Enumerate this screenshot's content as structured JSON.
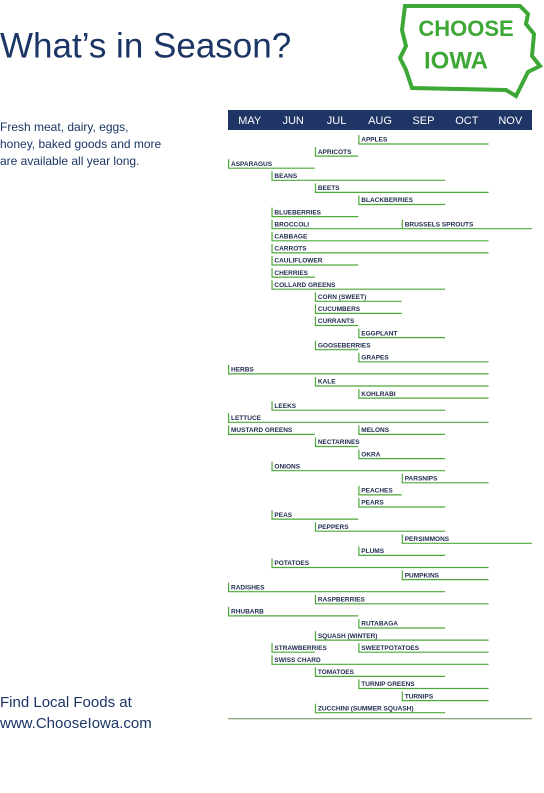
{
  "chart_data": {
    "type": "gantt",
    "title": "What’s in Season?",
    "subtitle_lines": [
      "Fresh meat, dairy, eggs,",
      "honey, baked goods and more",
      "are available all year long."
    ],
    "footer_lines": [
      "Find Local Foods at",
      "www.ChooseIowa.com"
    ],
    "logo": [
      "CHOOSE",
      "IOWA"
    ],
    "categories": [
      "MAY",
      "JUN",
      "JUL",
      "AUG",
      "SEP",
      "OCT",
      "NOV"
    ],
    "xlim": [
      0,
      7
    ],
    "color": "#4ea93b",
    "rows": [
      [
        {
          "name": "APPLES",
          "start": 3,
          "end": 6
        }
      ],
      [
        {
          "name": "APRICOTS",
          "start": 2,
          "end": 3
        }
      ],
      [
        {
          "name": "ASPARAGUS",
          "start": 0,
          "end": 2
        }
      ],
      [
        {
          "name": "BEANS",
          "start": 1,
          "end": 5
        }
      ],
      [
        {
          "name": "BEETS",
          "start": 2,
          "end": 6
        }
      ],
      [
        {
          "name": "BLACKBERRIES",
          "start": 3,
          "end": 5
        }
      ],
      [
        {
          "name": "BLUEBERRIES",
          "start": 1,
          "end": 3
        }
      ],
      [
        {
          "name": "BROCCOLI",
          "start": 1,
          "end": 4
        },
        {
          "name": "BRUSSELS SPROUTS",
          "start": 4,
          "end": 7
        }
      ],
      [
        {
          "name": "CABBAGE",
          "start": 1,
          "end": 6
        }
      ],
      [
        {
          "name": "CARROTS",
          "start": 1,
          "end": 6
        }
      ],
      [
        {
          "name": "CAULIFLOWER",
          "start": 1,
          "end": 3
        }
      ],
      [
        {
          "name": "CHERRIES",
          "start": 1,
          "end": 2
        }
      ],
      [
        {
          "name": "COLLARD GREENS",
          "start": 1,
          "end": 5
        }
      ],
      [
        {
          "name": "CORN (SWEET)",
          "start": 2,
          "end": 4
        }
      ],
      [
        {
          "name": "CUCUMBERS",
          "start": 2,
          "end": 4
        }
      ],
      [
        {
          "name": "CURRANTS",
          "start": 2,
          "end": 3
        }
      ],
      [
        {
          "name": "EGGPLANT",
          "start": 3,
          "end": 5
        }
      ],
      [
        {
          "name": "GOOSEBERRIES",
          "start": 2,
          "end": 3
        }
      ],
      [
        {
          "name": "GRAPES",
          "start": 3,
          "end": 6
        }
      ],
      [
        {
          "name": "HERBS",
          "start": 0,
          "end": 6
        }
      ],
      [
        {
          "name": "KALE",
          "start": 2,
          "end": 6
        }
      ],
      [
        {
          "name": "KOHLRABI",
          "start": 3,
          "end": 6
        }
      ],
      [
        {
          "name": "LEEKS",
          "start": 1,
          "end": 5
        }
      ],
      [
        {
          "name": "LETTUCE",
          "start": 0,
          "end": 6
        }
      ],
      [
        {
          "name": "MUSTARD GREENS",
          "start": 0,
          "end": 2
        },
        {
          "name": "MELONS",
          "start": 3,
          "end": 5
        }
      ],
      [
        {
          "name": "NECTARINES",
          "start": 2,
          "end": 3
        }
      ],
      [
        {
          "name": "OKRA",
          "start": 3,
          "end": 5
        }
      ],
      [
        {
          "name": "ONIONS",
          "start": 1,
          "end": 5
        }
      ],
      [
        {
          "name": "PARSNIPS",
          "start": 4,
          "end": 6
        }
      ],
      [
        {
          "name": "PEACHES",
          "start": 3,
          "end": 4
        }
      ],
      [
        {
          "name": "PEARS",
          "start": 3,
          "end": 5
        }
      ],
      [
        {
          "name": "PEAS",
          "start": 1,
          "end": 3
        }
      ],
      [
        {
          "name": "PEPPERS",
          "start": 2,
          "end": 5
        }
      ],
      [
        {
          "name": "PERSIMMONS",
          "start": 4,
          "end": 7
        }
      ],
      [
        {
          "name": "PLUMS",
          "start": 3,
          "end": 5
        }
      ],
      [
        {
          "name": "POTATOES",
          "start": 1,
          "end": 6
        }
      ],
      [
        {
          "name": "PUMPKINS",
          "start": 4,
          "end": 6
        }
      ],
      [
        {
          "name": "RADISHES",
          "start": 0,
          "end": 5
        }
      ],
      [
        {
          "name": "RASPBERRIES",
          "start": 2,
          "end": 6
        }
      ],
      [
        {
          "name": "RHUBARB",
          "start": 0,
          "end": 3
        }
      ],
      [
        {
          "name": "RUTABAGA",
          "start": 3,
          "end": 5
        }
      ],
      [
        {
          "name": "SQUASH (WINTER)",
          "start": 2,
          "end": 6
        }
      ],
      [
        {
          "name": "STRAWBERRIES",
          "start": 1,
          "end": 2
        },
        {
          "name": "SWEETPOTATOES",
          "start": 3,
          "end": 6
        }
      ],
      [
        {
          "name": "SWISS CHARD",
          "start": 1,
          "end": 6
        }
      ],
      [
        {
          "name": "TOMATOES",
          "start": 2,
          "end": 5
        }
      ],
      [
        {
          "name": "TURNIP GREENS",
          "start": 3,
          "end": 6
        }
      ],
      [
        {
          "name": "TURNIPS",
          "start": 4,
          "end": 6
        }
      ],
      [
        {
          "name": "ZUCCHINI (SUMMER SQUASH)",
          "start": 2,
          "end": 5
        }
      ]
    ]
  }
}
